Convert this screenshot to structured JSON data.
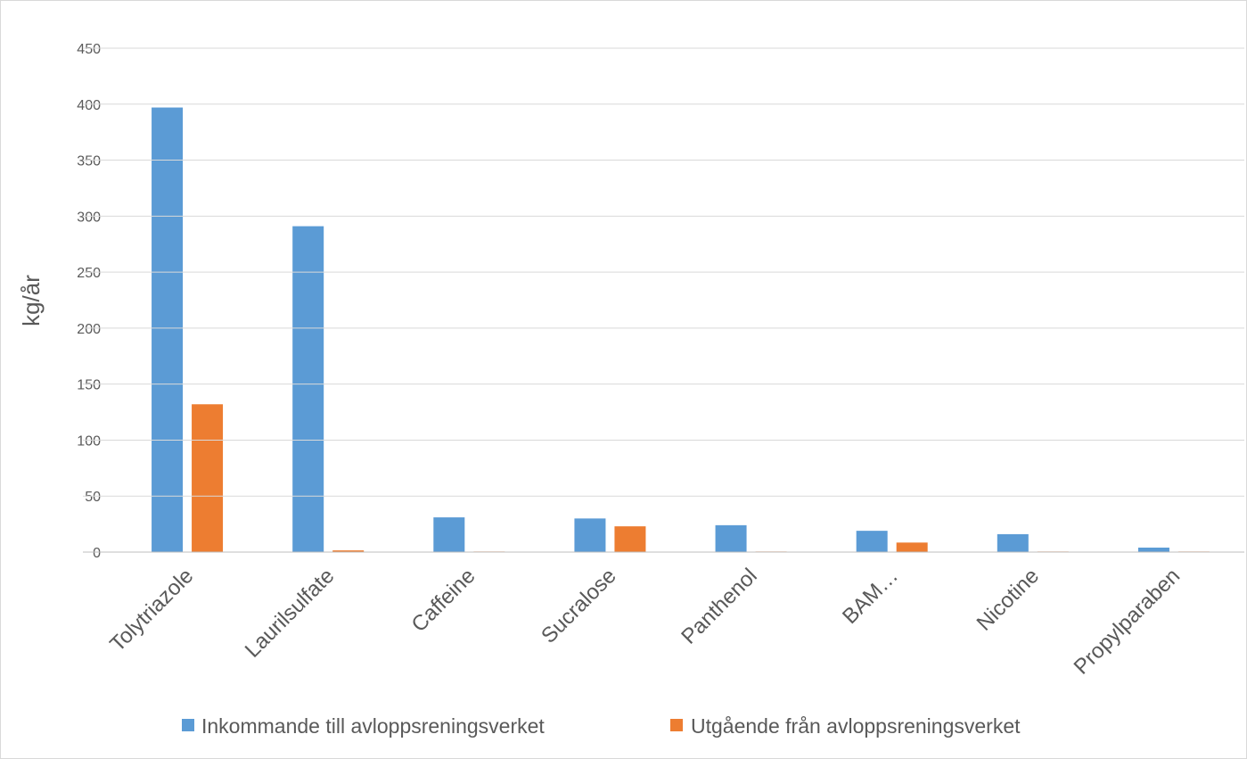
{
  "chart_data": {
    "type": "bar",
    "title": "",
    "xlabel": "",
    "ylabel": "kg/år",
    "ylim": [
      0,
      450
    ],
    "yticks": [
      0,
      50,
      100,
      150,
      200,
      250,
      300,
      350,
      400,
      450
    ],
    "grid": true,
    "legend_position": "bottom",
    "categories": [
      "Tolytriazole",
      "Laurilsulfate",
      "Caffeine",
      "Sucralose",
      "Panthenol",
      "BAM…",
      "Nicotine",
      "Propylparaben"
    ],
    "series": [
      {
        "name": "Inkommande till avloppsreningsverket",
        "color": "#5b9bd5",
        "values": [
          397,
          291,
          31,
          30,
          24,
          19,
          16,
          4
        ]
      },
      {
        "name": "Utgående från avloppsreningsverket",
        "color": "#ed7d31",
        "values": [
          132,
          1.5,
          0.5,
          23,
          0.5,
          8.5,
          0.5,
          0.5
        ]
      }
    ]
  }
}
